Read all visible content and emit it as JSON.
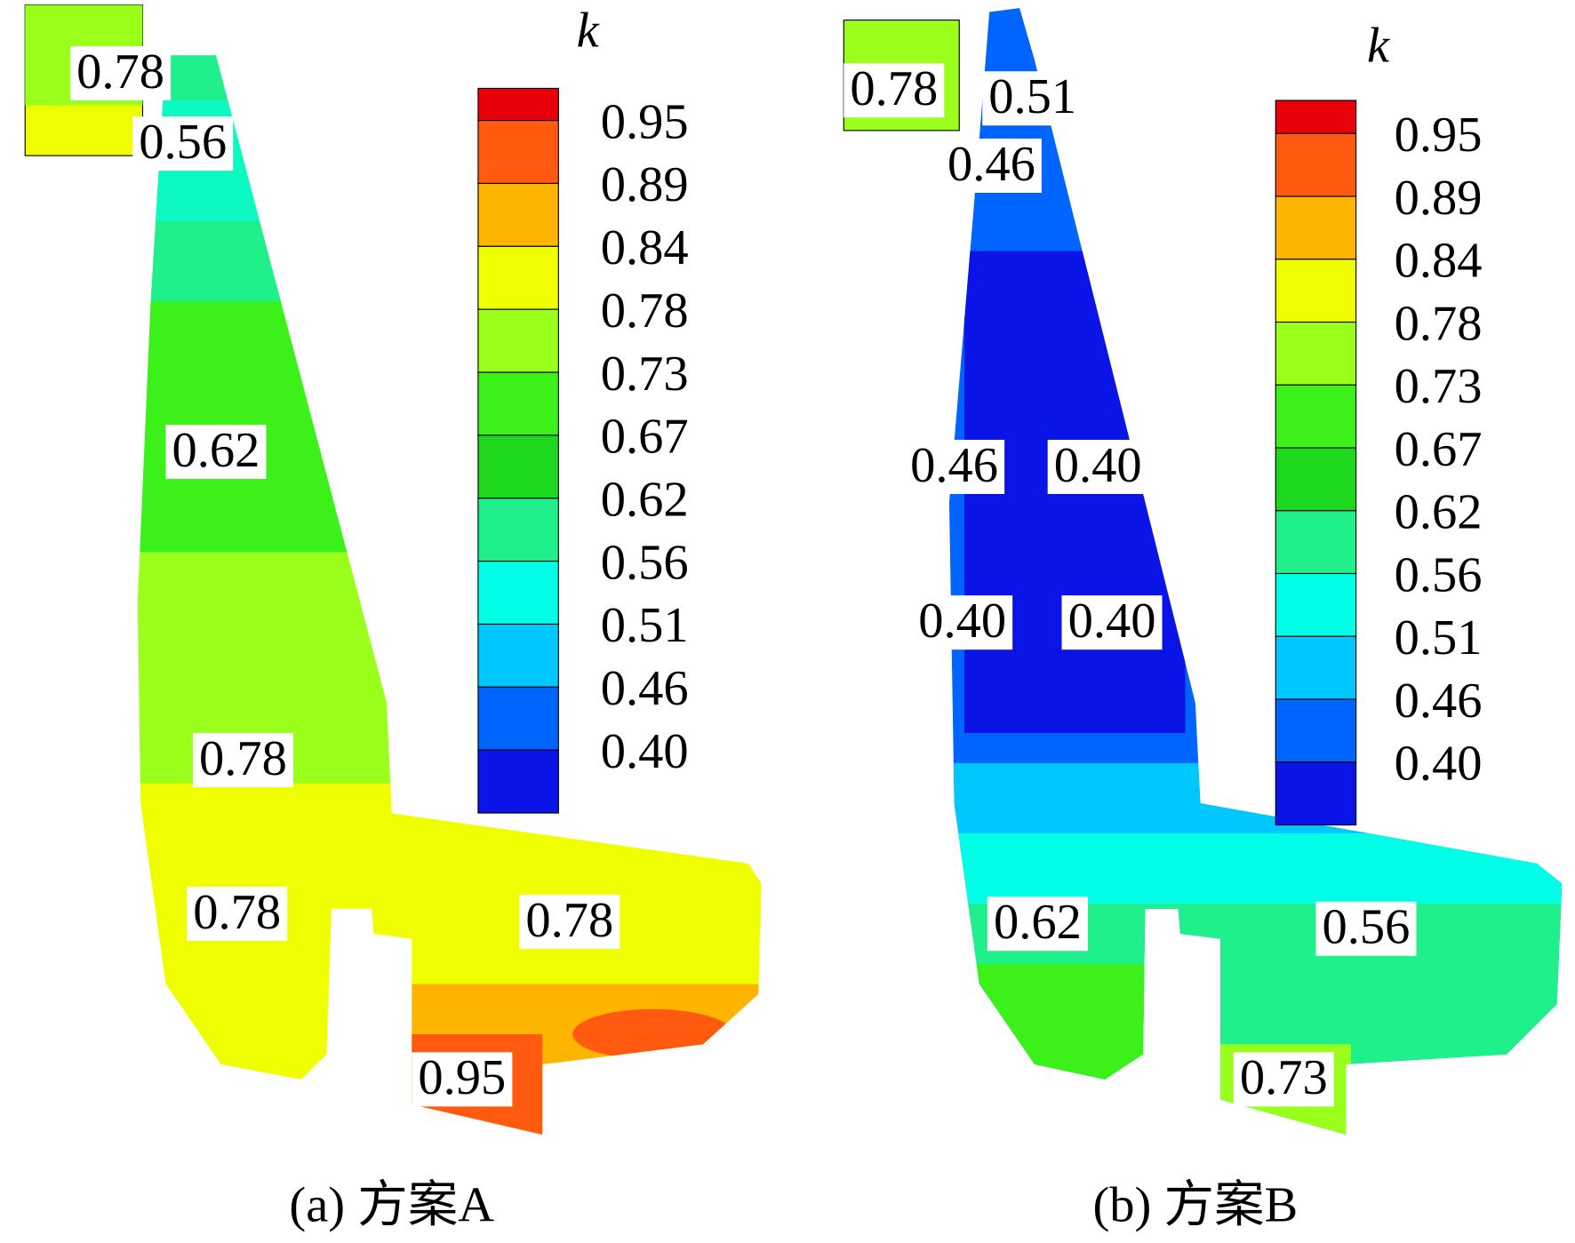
{
  "panels": [
    {
      "caption": "(a) 方案A",
      "colorbar_title": "k",
      "colorbar_labels": [
        "0.95",
        "0.89",
        "0.84",
        "0.78",
        "0.73",
        "0.67",
        "0.62",
        "0.56",
        "0.51",
        "0.46",
        "0.40"
      ],
      "contour_labels": [
        "0.78",
        "0.56",
        "0.62",
        "0.78",
        "0.78",
        "0.78",
        "0.95"
      ]
    },
    {
      "caption": "(b) 方案B",
      "colorbar_title": "k",
      "colorbar_labels": [
        "0.95",
        "0.89",
        "0.84",
        "0.78",
        "0.73",
        "0.67",
        "0.62",
        "0.56",
        "0.51",
        "0.46",
        "0.40"
      ],
      "contour_labels": [
        "0.78",
        "0.51",
        "0.46",
        "0.46",
        "0.40",
        "0.40",
        "0.40",
        "0.56",
        "0.62",
        "0.73"
      ]
    }
  ],
  "colorbar_colors": [
    "#e8000b",
    "#ff5a10",
    "#ffb400",
    "#f0ff00",
    "#9aff1a",
    "#3cf01a",
    "#1ed81e",
    "#20f08c",
    "#00ffe6",
    "#00c8ff",
    "#0064ff",
    "#0a14e6"
  ]
}
